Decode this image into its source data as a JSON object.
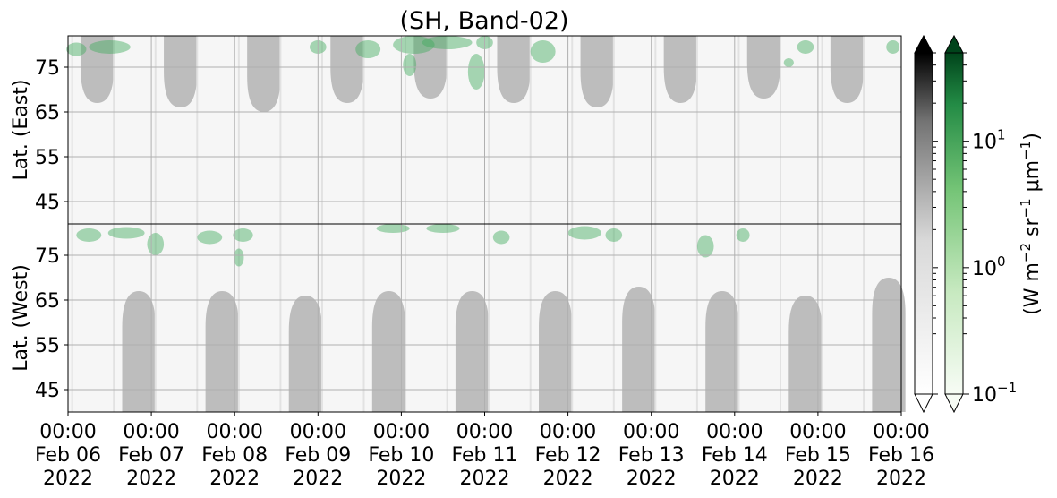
{
  "chart_data": {
    "type": "heatmap",
    "title": "(SH, Band-02)",
    "panels": [
      {
        "name": "east",
        "ylabel": "Lat. (East)",
        "yticks": [
          45,
          55,
          65,
          75
        ],
        "ylim": [
          40,
          82
        ],
        "y_direction": "up"
      },
      {
        "name": "west",
        "ylabel": "Lat. (West)",
        "yticks": [
          75,
          65,
          55,
          45
        ],
        "ylim": [
          40,
          82
        ],
        "y_direction": "down"
      }
    ],
    "xticks": [
      {
        "time": "00:00",
        "date": "Feb 06",
        "year": "2022"
      },
      {
        "time": "00:00",
        "date": "Feb 07",
        "year": "2022"
      },
      {
        "time": "00:00",
        "date": "Feb 08",
        "year": "2022"
      },
      {
        "time": "00:00",
        "date": "Feb 09",
        "year": "2022"
      },
      {
        "time": "00:00",
        "date": "Feb 10",
        "year": "2022"
      },
      {
        "time": "00:00",
        "date": "Feb 11",
        "year": "2022"
      },
      {
        "time": "00:00",
        "date": "Feb 12",
        "year": "2022"
      },
      {
        "time": "00:00",
        "date": "Feb 13",
        "year": "2022"
      },
      {
        "time": "00:00",
        "date": "Feb 14",
        "year": "2022"
      },
      {
        "time": "00:00",
        "date": "Feb 15",
        "year": "2022"
      },
      {
        "time": "00:00",
        "date": "Feb 16",
        "year": "2022"
      }
    ],
    "x_range": [
      "2022-02-06",
      "2022-02-16"
    ],
    "colorbars": [
      {
        "name": "gray",
        "colormap": "Greys",
        "extend": "both"
      },
      {
        "name": "green",
        "colormap": "Greens",
        "extend": "both",
        "scale": "log",
        "range": [
          0.1,
          50
        ],
        "ticks": [
          {
            "value": 0.1,
            "base": "10",
            "exp": "−1"
          },
          {
            "value": 1,
            "base": "10",
            "exp": "0"
          },
          {
            "value": 10,
            "base": "10",
            "exp": "1"
          }
        ]
      }
    ],
    "colorbar_label": {
      "prefix": "(W m",
      "exp1": "−2",
      "mid": " sr",
      "exp2": "−1",
      "mid2": " μm",
      "exp3": "−1",
      "suffix": ")"
    },
    "grid": true,
    "colors": {
      "gray_region": "#bdbdbd",
      "green": "#41ab5d",
      "grid": "#b0b0b0"
    },
    "gray_regions_east": [
      {
        "day": 0.35,
        "half_width": 0.2,
        "min_lat": 67
      },
      {
        "day": 1.35,
        "half_width": 0.2,
        "min_lat": 66
      },
      {
        "day": 2.35,
        "half_width": 0.2,
        "min_lat": 65
      },
      {
        "day": 3.35,
        "half_width": 0.2,
        "min_lat": 67
      },
      {
        "day": 4.35,
        "half_width": 0.2,
        "min_lat": 68
      },
      {
        "day": 5.35,
        "half_width": 0.2,
        "min_lat": 67
      },
      {
        "day": 6.35,
        "half_width": 0.2,
        "min_lat": 66
      },
      {
        "day": 7.35,
        "half_width": 0.2,
        "min_lat": 67
      },
      {
        "day": 8.35,
        "half_width": 0.2,
        "min_lat": 68
      },
      {
        "day": 9.35,
        "half_width": 0.2,
        "min_lat": 67
      }
    ],
    "gray_regions_west": [
      {
        "day": 0.85,
        "half_width": 0.2,
        "min_lat": 67
      },
      {
        "day": 1.85,
        "half_width": 0.2,
        "min_lat": 67
      },
      {
        "day": 2.85,
        "half_width": 0.2,
        "min_lat": 66
      },
      {
        "day": 3.85,
        "half_width": 0.2,
        "min_lat": 67
      },
      {
        "day": 4.85,
        "half_width": 0.2,
        "min_lat": 67
      },
      {
        "day": 5.85,
        "half_width": 0.2,
        "min_lat": 67
      },
      {
        "day": 6.85,
        "half_width": 0.2,
        "min_lat": 68
      },
      {
        "day": 7.85,
        "half_width": 0.2,
        "min_lat": 67
      },
      {
        "day": 8.85,
        "half_width": 0.2,
        "min_lat": 66
      },
      {
        "day": 9.85,
        "half_width": 0.2,
        "min_lat": 70
      }
    ],
    "green_patches_east": [
      {
        "day": 0.1,
        "lat": 79.0,
        "dd": 0.12,
        "dl": 1.5
      },
      {
        "day": 0.5,
        "lat": 79.5,
        "dd": 0.25,
        "dl": 1.5
      },
      {
        "day": 3.0,
        "lat": 79.5,
        "dd": 0.1,
        "dl": 1.5
      },
      {
        "day": 3.6,
        "lat": 79.0,
        "dd": 0.15,
        "dl": 2.0
      },
      {
        "day": 4.15,
        "lat": 80.0,
        "dd": 0.25,
        "dl": 2.0
      },
      {
        "day": 4.1,
        "lat": 75.5,
        "dd": 0.08,
        "dl": 2.5
      },
      {
        "day": 4.55,
        "lat": 80.5,
        "dd": 0.3,
        "dl": 1.5
      },
      {
        "day": 5.0,
        "lat": 80.5,
        "dd": 0.1,
        "dl": 1.5
      },
      {
        "day": 4.9,
        "lat": 74.0,
        "dd": 0.1,
        "dl": 4.0
      },
      {
        "day": 5.7,
        "lat": 78.5,
        "dd": 0.15,
        "dl": 2.5
      },
      {
        "day": 8.65,
        "lat": 76.0,
        "dd": 0.06,
        "dl": 1.0
      },
      {
        "day": 8.85,
        "lat": 79.5,
        "dd": 0.1,
        "dl": 1.5
      },
      {
        "day": 9.9,
        "lat": 79.5,
        "dd": 0.08,
        "dl": 1.5
      }
    ],
    "green_patches_west": [
      {
        "day": 0.25,
        "lat": 79.5,
        "dd": 0.15,
        "dl": 1.5
      },
      {
        "day": 0.7,
        "lat": 80.0,
        "dd": 0.22,
        "dl": 1.3
      },
      {
        "day": 1.05,
        "lat": 77.5,
        "dd": 0.1,
        "dl": 2.5
      },
      {
        "day": 1.7,
        "lat": 79.0,
        "dd": 0.15,
        "dl": 1.5
      },
      {
        "day": 2.1,
        "lat": 79.5,
        "dd": 0.12,
        "dl": 1.5
      },
      {
        "day": 2.05,
        "lat": 74.5,
        "dd": 0.06,
        "dl": 2.0
      },
      {
        "day": 3.9,
        "lat": 81.0,
        "dd": 0.2,
        "dl": 1.0
      },
      {
        "day": 4.5,
        "lat": 81.0,
        "dd": 0.2,
        "dl": 1.0
      },
      {
        "day": 5.2,
        "lat": 79.0,
        "dd": 0.1,
        "dl": 1.5
      },
      {
        "day": 6.2,
        "lat": 80.0,
        "dd": 0.2,
        "dl": 1.5
      },
      {
        "day": 6.55,
        "lat": 79.5,
        "dd": 0.1,
        "dl": 1.5
      },
      {
        "day": 7.65,
        "lat": 77.0,
        "dd": 0.1,
        "dl": 2.5
      },
      {
        "day": 8.1,
        "lat": 79.5,
        "dd": 0.08,
        "dl": 1.5
      }
    ]
  }
}
